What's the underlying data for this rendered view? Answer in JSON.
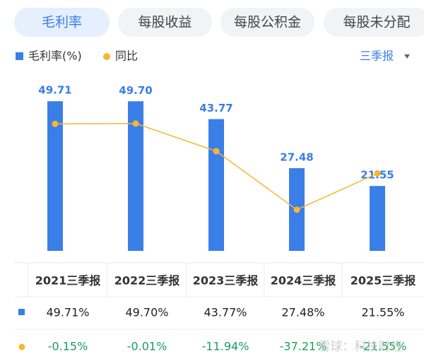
{
  "tabs": [
    "毛利率",
    "每股收益",
    "每股公积金",
    "每股未分配"
  ],
  "period": "三季报",
  "chart_data": {
    "type": "bar",
    "categories": [
      "2021三季报",
      "2022三季报",
      "2023三季报",
      "2024三季报",
      "2025三季报"
    ],
    "ylim": [
      0,
      50
    ],
    "y2lim": [
      -55,
      10
    ],
    "series": [
      {
        "name": "毛利率(%)",
        "color": "#3a7ee8",
        "values": [
          49.71,
          49.7,
          43.77,
          27.48,
          21.55
        ],
        "value_labels": [
          "49.71",
          "49.70",
          "43.77",
          "27.48",
          "21.55"
        ]
      },
      {
        "name": "同比",
        "color": "#f5b731",
        "axis": "y2",
        "type": "line",
        "values": [
          -0.15,
          -0.01,
          -11.94,
          -37.21,
          -21.55
        ]
      }
    ]
  },
  "table": {
    "rows": [
      [
        "49.71%",
        "49.70%",
        "43.77%",
        "27.48%",
        "21.55%"
      ],
      [
        "-0.15%",
        "-0.01%",
        "-11.94%",
        "-37.21%",
        "-21.55%"
      ]
    ]
  },
  "watermark": "雪球：科技财经"
}
